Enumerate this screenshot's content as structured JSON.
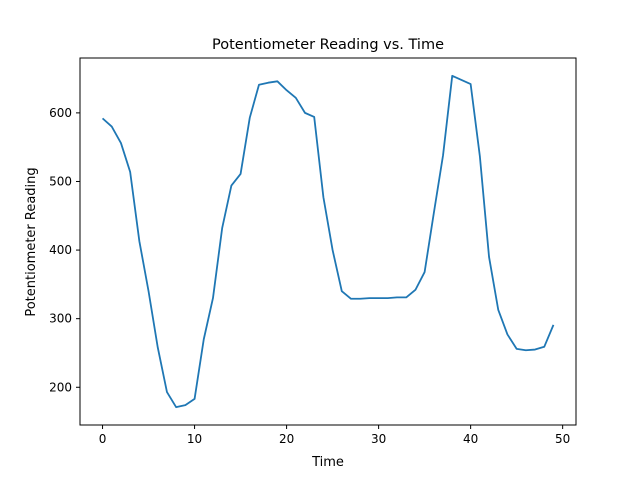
{
  "chart_data": {
    "type": "line",
    "title": "Potentiometer Reading vs. Time",
    "xlabel": "Time",
    "ylabel": "Potentiometer Reading",
    "xlim": [
      -2.45,
      51.45
    ],
    "ylim": [
      145,
      680
    ],
    "xticks": [
      0,
      10,
      20,
      30,
      40,
      50
    ],
    "yticks": [
      200,
      300,
      400,
      500,
      600
    ],
    "grid": false,
    "series": [
      {
        "color": "#1f77b4",
        "x": [
          0,
          1,
          2,
          3,
          4,
          5,
          6,
          7,
          8,
          9,
          10,
          11,
          12,
          13,
          14,
          15,
          16,
          17,
          18,
          19,
          20,
          21,
          22,
          23,
          24,
          25,
          26,
          27,
          28,
          29,
          30,
          31,
          32,
          33,
          34,
          35,
          36,
          37,
          38,
          39,
          40,
          41,
          42,
          43,
          44,
          45,
          46,
          47,
          48,
          49
        ],
        "y": [
          592,
          580,
          556,
          514,
          413,
          340,
          258,
          193,
          171,
          174,
          183,
          270,
          330,
          432,
          494,
          511,
          593,
          641,
          644,
          646,
          633,
          622,
          600,
          594,
          477,
          400,
          340,
          329,
          329,
          330,
          330,
          330,
          331,
          331,
          342,
          368,
          454,
          538,
          654,
          648,
          642,
          537,
          390,
          313,
          277,
          256,
          254,
          255,
          259,
          291
        ]
      }
    ]
  }
}
